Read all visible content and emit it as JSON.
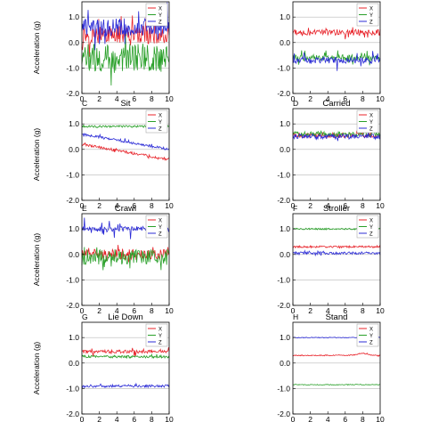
{
  "figure": {
    "y_axis_label": "Acceleration (g)"
  },
  "colors": {
    "x": "#e8232a",
    "y": "#2aa02a",
    "z": "#2b2bd6",
    "grid": "#b8b8b8",
    "axis": "#000000"
  },
  "chart_data": [
    {
      "id": "A",
      "letter": "",
      "title": "",
      "type": "line",
      "ylabel": "Acceleration (g)",
      "xlim": [
        0,
        10
      ],
      "ylim": [
        -2.0,
        1.6
      ],
      "yticks": [
        "1.0",
        "0.0",
        "-1.0",
        "-2.0"
      ],
      "xticks": [
        "0",
        "2",
        "4",
        "6",
        "8",
        "10"
      ],
      "grid": true,
      "legend": "top-right",
      "series": [
        {
          "name": "X",
          "color": "#e8232a",
          "mean": 0.3,
          "noise": 0.35,
          "spikes": 0.6
        },
        {
          "name": "Y",
          "color": "#2aa02a",
          "mean": -0.6,
          "noise": 0.55,
          "spikes": 0.9
        },
        {
          "name": "Z",
          "color": "#2b2bd6",
          "mean": 0.6,
          "noise": 0.35,
          "spikes": 0.8
        }
      ]
    },
    {
      "id": "B",
      "letter": "",
      "title": "",
      "type": "line",
      "ylabel": "",
      "xlim": [
        0,
        10
      ],
      "ylim": [
        -2.0,
        1.6
      ],
      "yticks": [
        "1.0",
        "0.0",
        "-1.0",
        "-2.0"
      ],
      "xticks": [
        "0",
        "2",
        "4",
        "6",
        "8",
        "10"
      ],
      "grid": true,
      "legend": "top-right",
      "series": [
        {
          "name": "X",
          "color": "#e8232a",
          "mean": 0.4,
          "noise": 0.12,
          "spikes": 0.2
        },
        {
          "name": "Y",
          "color": "#2aa02a",
          "mean": -0.6,
          "noise": 0.12,
          "spikes": 0.3
        },
        {
          "name": "Z",
          "color": "#2b2bd6",
          "mean": -0.7,
          "noise": 0.12,
          "spikes": 0.4
        }
      ]
    },
    {
      "id": "C",
      "letter": "C",
      "title": "Sit",
      "type": "line",
      "ylabel": "Acceleration (g)",
      "xlim": [
        0,
        10
      ],
      "ylim": [
        -2.0,
        1.6
      ],
      "yticks": [
        "1.0",
        "0.0",
        "-1.0",
        "-2.0"
      ],
      "xticks": [
        "0",
        "2",
        "4",
        "6",
        "8",
        "10"
      ],
      "grid": true,
      "legend": "top-right",
      "series": [
        {
          "name": "X",
          "color": "#e8232a",
          "mean": 0.2,
          "noise": 0.05,
          "spikes": 0.05,
          "trend": -0.6
        },
        {
          "name": "Y",
          "color": "#2aa02a",
          "mean": 0.9,
          "noise": 0.04,
          "spikes": 0.05
        },
        {
          "name": "Z",
          "color": "#2b2bd6",
          "mean": 0.6,
          "noise": 0.05,
          "spikes": 0.1,
          "trend": -0.6
        }
      ]
    },
    {
      "id": "D",
      "letter": "D",
      "title": "Carried",
      "type": "line",
      "ylabel": "",
      "xlim": [
        0,
        10
      ],
      "ylim": [
        -2.0,
        1.6
      ],
      "yticks": [
        "1.0",
        "0.0",
        "-1.0",
        "-2.0"
      ],
      "xticks": [
        "0",
        "2",
        "4",
        "6",
        "8",
        "10"
      ],
      "grid": true,
      "legend": "top-right",
      "series": [
        {
          "name": "X",
          "color": "#e8232a",
          "mean": 0.55,
          "noise": 0.1,
          "spikes": 0.1
        },
        {
          "name": "Y",
          "color": "#2aa02a",
          "mean": 0.6,
          "noise": 0.1,
          "spikes": 0.1
        },
        {
          "name": "Z",
          "color": "#2b2bd6",
          "mean": 0.5,
          "noise": 0.1,
          "spikes": 0.1
        }
      ]
    },
    {
      "id": "E",
      "letter": "E",
      "title": "Crawl",
      "type": "line",
      "ylabel": "Acceleration (g)",
      "xlim": [
        0,
        10
      ],
      "ylim": [
        -2.0,
        1.6
      ],
      "yticks": [
        "1.0",
        "0.0",
        "-1.0",
        "-2.0"
      ],
      "xticks": [
        "0",
        "2",
        "4",
        "6",
        "8",
        "10"
      ],
      "grid": true,
      "legend": "top-right",
      "series": [
        {
          "name": "X",
          "color": "#e8232a",
          "mean": 0.0,
          "noise": 0.2,
          "spikes": 0.3
        },
        {
          "name": "Y",
          "color": "#2aa02a",
          "mean": -0.1,
          "noise": 0.3,
          "spikes": 0.4
        },
        {
          "name": "Z",
          "color": "#2b2bd6",
          "mean": 1.0,
          "noise": 0.1,
          "spikes": 0.4
        }
      ]
    },
    {
      "id": "F",
      "letter": "F",
      "title": "Stroller",
      "type": "line",
      "ylabel": "",
      "xlim": [
        0,
        10
      ],
      "ylim": [
        -2.0,
        1.6
      ],
      "yticks": [
        "1.0",
        "0.0",
        "-1.0",
        "-2.0"
      ],
      "xticks": [
        "0",
        "2",
        "4",
        "6",
        "8",
        "10"
      ],
      "grid": true,
      "legend": "top-right",
      "series": [
        {
          "name": "X",
          "color": "#e8232a",
          "mean": 0.3,
          "noise": 0.04,
          "spikes": 0.03
        },
        {
          "name": "Y",
          "color": "#2aa02a",
          "mean": 1.0,
          "noise": 0.03,
          "spikes": 0.03
        },
        {
          "name": "Z",
          "color": "#2b2bd6",
          "mean": 0.05,
          "noise": 0.05,
          "spikes": 0.05
        }
      ]
    },
    {
      "id": "G",
      "letter": "G",
      "title": "Lie Down",
      "type": "line",
      "ylabel": "Acceleration (g)",
      "xlim": [
        0,
        10
      ],
      "ylim": [
        -2.0,
        1.6
      ],
      "yticks": [
        "1.0",
        "0.0",
        "-1.0",
        "-2.0"
      ],
      "xticks": [
        "0",
        "2",
        "4",
        "6",
        "8",
        "10"
      ],
      "grid": true,
      "legend": "top-right",
      "series": [
        {
          "name": "X",
          "color": "#e8232a",
          "mean": 0.45,
          "noise": 0.06,
          "spikes": 0.2
        },
        {
          "name": "Y",
          "color": "#2aa02a",
          "mean": 0.25,
          "noise": 0.05,
          "spikes": 0.15
        },
        {
          "name": "Z",
          "color": "#2b2bd6",
          "mean": -0.9,
          "noise": 0.05,
          "spikes": 0.05
        }
      ]
    },
    {
      "id": "H",
      "letter": "H",
      "title": "Stand",
      "type": "line",
      "ylabel": "",
      "xlim": [
        0,
        10
      ],
      "ylim": [
        -2.0,
        1.6
      ],
      "yticks": [
        "1.0",
        "0.0",
        "-1.0",
        "-2.0"
      ],
      "xticks": [
        "0",
        "2",
        "4",
        "6",
        "8",
        "10"
      ],
      "grid": true,
      "legend": "top-right",
      "series": [
        {
          "name": "X",
          "color": "#e8232a",
          "mean": 0.3,
          "noise": 0.02,
          "spikes": 0.02,
          "bump": 0.08
        },
        {
          "name": "Y",
          "color": "#2aa02a",
          "mean": -0.85,
          "noise": 0.015,
          "spikes": 0.0
        },
        {
          "name": "Z",
          "color": "#2b2bd6",
          "mean": 1.0,
          "noise": 0.015,
          "spikes": 0.0
        }
      ]
    }
  ]
}
